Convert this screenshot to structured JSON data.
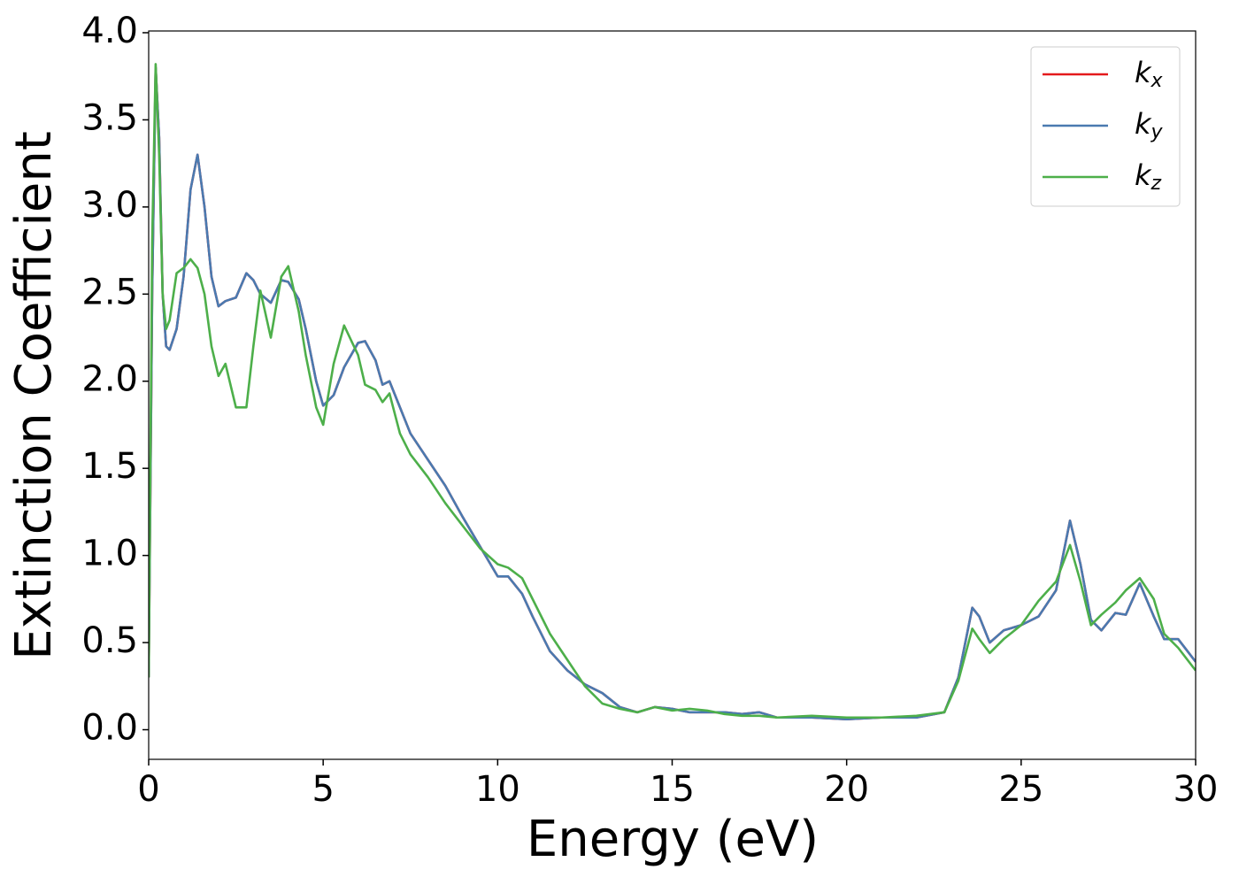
{
  "chart_data": {
    "type": "line",
    "xlabel": "Energy (eV)",
    "ylabel": "Extinction Coefficient",
    "x": [
      0,
      0.1,
      0.2,
      0.3,
      0.4,
      0.5,
      0.6,
      0.8,
      1.0,
      1.2,
      1.4,
      1.6,
      1.8,
      2.0,
      2.2,
      2.5,
      2.8,
      3.0,
      3.2,
      3.5,
      3.8,
      4.0,
      4.3,
      4.5,
      4.8,
      5.0,
      5.3,
      5.6,
      6.0,
      6.2,
      6.5,
      6.7,
      6.9,
      7.2,
      7.5,
      8.0,
      8.5,
      9.0,
      9.5,
      10.0,
      10.3,
      10.7,
      11.0,
      11.5,
      12.0,
      12.5,
      13.0,
      13.5,
      14.0,
      14.5,
      15.0,
      15.5,
      16.0,
      16.5,
      17.0,
      17.5,
      18.0,
      19.0,
      20.0,
      21.0,
      22.0,
      22.8,
      23.2,
      23.6,
      23.8,
      24.1,
      24.5,
      25.0,
      25.5,
      26.0,
      26.4,
      26.7,
      27.0,
      27.3,
      27.7,
      28.0,
      28.4,
      28.8,
      29.1,
      29.5,
      30.0
    ],
    "series": [
      {
        "name": "kx",
        "color": "#e41a1c",
        "values": [
          0.3,
          2.5,
          3.8,
          3.4,
          2.5,
          2.2,
          2.18,
          2.3,
          2.6,
          3.1,
          3.3,
          3.0,
          2.6,
          2.43,
          2.46,
          2.48,
          2.62,
          2.58,
          2.5,
          2.45,
          2.58,
          2.57,
          2.47,
          2.3,
          2.0,
          1.86,
          1.92,
          2.08,
          2.22,
          2.23,
          2.12,
          1.98,
          2.0,
          1.85,
          1.7,
          1.55,
          1.4,
          1.22,
          1.05,
          0.88,
          0.88,
          0.78,
          0.65,
          0.45,
          0.34,
          0.26,
          0.21,
          0.13,
          0.1,
          0.13,
          0.12,
          0.1,
          0.1,
          0.1,
          0.09,
          0.1,
          0.07,
          0.07,
          0.06,
          0.07,
          0.07,
          0.1,
          0.3,
          0.7,
          0.65,
          0.5,
          0.57,
          0.6,
          0.65,
          0.8,
          1.2,
          0.95,
          0.63,
          0.57,
          0.67,
          0.66,
          0.84,
          0.65,
          0.52,
          0.52,
          0.39
        ]
      },
      {
        "name": "ky",
        "color": "#4a7ab0",
        "values": [
          0.3,
          2.5,
          3.8,
          3.4,
          2.5,
          2.2,
          2.18,
          2.3,
          2.6,
          3.1,
          3.3,
          3.0,
          2.6,
          2.43,
          2.46,
          2.48,
          2.62,
          2.58,
          2.5,
          2.45,
          2.58,
          2.57,
          2.47,
          2.3,
          2.0,
          1.86,
          1.92,
          2.08,
          2.22,
          2.23,
          2.12,
          1.98,
          2.0,
          1.85,
          1.7,
          1.55,
          1.4,
          1.22,
          1.05,
          0.88,
          0.88,
          0.78,
          0.65,
          0.45,
          0.34,
          0.26,
          0.21,
          0.13,
          0.1,
          0.13,
          0.12,
          0.1,
          0.1,
          0.1,
          0.09,
          0.1,
          0.07,
          0.07,
          0.06,
          0.07,
          0.07,
          0.1,
          0.3,
          0.7,
          0.65,
          0.5,
          0.57,
          0.6,
          0.65,
          0.8,
          1.2,
          0.95,
          0.63,
          0.57,
          0.67,
          0.66,
          0.84,
          0.65,
          0.52,
          0.52,
          0.39
        ]
      },
      {
        "name": "kz",
        "color": "#4daf4a",
        "values": [
          0.3,
          2.8,
          3.82,
          3.3,
          2.5,
          2.3,
          2.35,
          2.62,
          2.65,
          2.7,
          2.65,
          2.5,
          2.2,
          2.03,
          2.1,
          1.85,
          1.85,
          2.2,
          2.52,
          2.25,
          2.6,
          2.66,
          2.4,
          2.15,
          1.85,
          1.75,
          2.1,
          2.32,
          2.15,
          1.98,
          1.95,
          1.88,
          1.93,
          1.7,
          1.58,
          1.45,
          1.3,
          1.17,
          1.04,
          0.95,
          0.93,
          0.87,
          0.75,
          0.55,
          0.4,
          0.25,
          0.15,
          0.12,
          0.1,
          0.13,
          0.11,
          0.12,
          0.11,
          0.09,
          0.08,
          0.08,
          0.07,
          0.08,
          0.07,
          0.07,
          0.08,
          0.1,
          0.28,
          0.58,
          0.52,
          0.44,
          0.52,
          0.6,
          0.74,
          0.85,
          1.06,
          0.85,
          0.6,
          0.66,
          0.73,
          0.8,
          0.87,
          0.75,
          0.55,
          0.47,
          0.34
        ]
      }
    ],
    "xlim": [
      0,
      30
    ],
    "xticks": [
      0,
      5,
      10,
      15,
      20,
      25,
      30
    ],
    "ylim": [
      -0.17,
      4.01
    ],
    "yticks": [
      {
        "value": 0,
        "label": "0.0"
      },
      {
        "value": 0.5,
        "label": "0.5"
      },
      {
        "value": 1,
        "label": "1.0"
      },
      {
        "value": 1.5,
        "label": "1.5"
      },
      {
        "value": 2,
        "label": "2.0"
      },
      {
        "value": 2.5,
        "label": "2.5"
      },
      {
        "value": 3,
        "label": "3.0"
      },
      {
        "value": 3.5,
        "label": "3.5"
      },
      {
        "value": 4,
        "label": "4.0"
      }
    ],
    "legend": "upper right",
    "grid": false
  }
}
